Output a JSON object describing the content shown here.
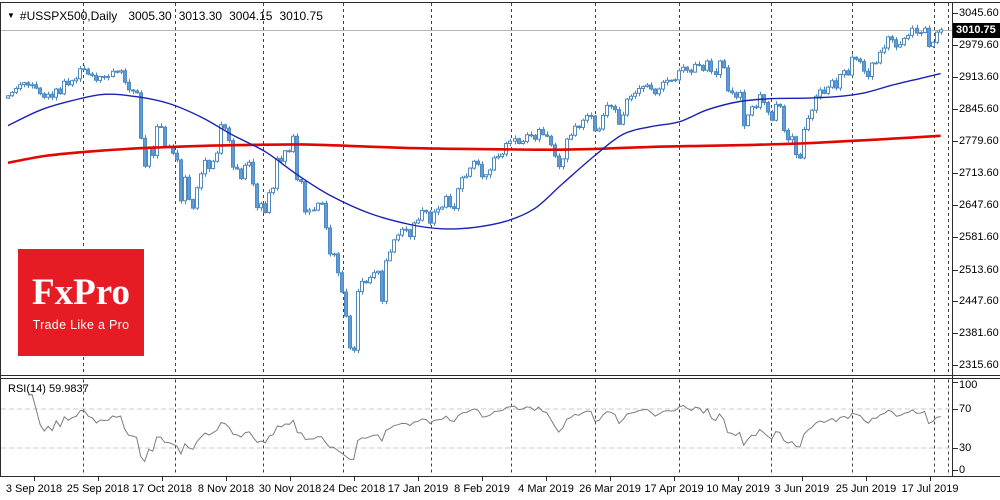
{
  "header": {
    "dropdown_icon": "▼",
    "symbol_period": "#USSPX500,Daily",
    "open": "3005.30",
    "high": "3013.30",
    "low": "3004.15",
    "close": "3010.75"
  },
  "watermark": {
    "brand": "FxPro",
    "tagline": "Trade Like a Pro",
    "bg_color": "#e61b23"
  },
  "rsi_panel": {
    "label": "RSI(14) 59.9837",
    "scale_labels": [
      100,
      70,
      30,
      0
    ],
    "line_color": "#7d7d7d"
  },
  "price_axis": {
    "labels": [
      "3045.60",
      "2979.60",
      "2913.60",
      "2845.60",
      "2779.60",
      "2713.60",
      "2647.60",
      "2581.60",
      "2513.60",
      "2447.60",
      "2381.60",
      "2315.60"
    ],
    "current_price": "3010.75",
    "tag_bg": "#000000"
  },
  "time_axis": {
    "labels": [
      "3 Sep 2018",
      "25 Sep 2018",
      "17 Oct 2018",
      "8 Nov 2018",
      "30 Nov 2018",
      "24 Dec 2018",
      "17 Jan 2019",
      "8 Feb 2019",
      "4 Mar 2019",
      "26 Mar 2019",
      "17 Apr 2019",
      "10 May 2019",
      "3 Jun 2019",
      "25 Jun 2019",
      "17 Jul 2019"
    ]
  },
  "chart_data": {
    "type": "candlestick",
    "symbol": "#USSPX500",
    "timeframe": "Daily",
    "ohlc_current": {
      "open": 3005.3,
      "high": 3013.3,
      "low": 3004.15,
      "close": 3010.75
    },
    "y_range": [
      2315.6,
      3045.6
    ],
    "x_range_dates": [
      "3 Sep 2018",
      "17 Jul 2019"
    ],
    "closes": [
      2874,
      2881,
      2889,
      2897,
      2901,
      2896,
      2897,
      2890,
      2878,
      2871,
      2877,
      2871,
      2888,
      2878,
      2904,
      2897,
      2905,
      2909,
      2930,
      2929,
      2919,
      2916,
      2906,
      2914,
      2913,
      2914,
      2925,
      2923,
      2926,
      2902,
      2886,
      2884,
      2880,
      2786,
      2728,
      2767,
      2750,
      2810,
      2809,
      2769,
      2768,
      2755,
      2741,
      2656,
      2705,
      2659,
      2641,
      2683,
      2712,
      2740,
      2723,
      2738,
      2755,
      2814,
      2807,
      2781,
      2726,
      2722,
      2702,
      2730,
      2736,
      2691,
      2642,
      2650,
      2632,
      2673,
      2682,
      2744,
      2738,
      2760,
      2758,
      2790,
      2700,
      2696,
      2633,
      2637,
      2637,
      2651,
      2651,
      2600,
      2546,
      2546,
      2507,
      2467,
      2417,
      2351,
      2346,
      2468,
      2489,
      2486,
      2497,
      2507,
      2510,
      2448,
      2532,
      2550,
      2575,
      2585,
      2597,
      2596,
      2582,
      2610,
      2616,
      2636,
      2633,
      2610,
      2633,
      2639,
      2643,
      2665,
      2644,
      2640,
      2681,
      2704,
      2707,
      2724,
      2738,
      2732,
      2706,
      2710,
      2720,
      2745,
      2748,
      2753,
      2775,
      2780,
      2785,
      2775,
      2779,
      2793,
      2792,
      2784,
      2804,
      2793,
      2790,
      2772,
      2749,
      2727,
      2743,
      2784,
      2792,
      2811,
      2808,
      2823,
      2833,
      2832,
      2801,
      2805,
      2833,
      2854,
      2852,
      2845,
      2815,
      2834,
      2867,
      2873,
      2879,
      2889,
      2893,
      2896,
      2888,
      2878,
      2888,
      2902,
      2906,
      2905,
      2907,
      2926,
      2933,
      2927,
      2923,
      2939,
      2937,
      2927,
      2946,
      2924,
      2918,
      2946,
      2932,
      2884,
      2880,
      2871,
      2881,
      2812,
      2834,
      2851,
      2850,
      2876,
      2860,
      2840,
      2823,
      2856,
      2852,
      2802,
      2783,
      2789,
      2752,
      2745,
      2804,
      2827,
      2844,
      2873,
      2886,
      2879,
      2892,
      2905,
      2890,
      2918,
      2926,
      2917,
      2954,
      2950,
      2945,
      2925,
      2914,
      2942,
      2942,
      2964,
      2973,
      2996,
      2990,
      2975,
      2980,
      2993,
      2999,
      3014,
      3004,
      3005,
      3014,
      2976,
      2985,
      3006,
      3010.75
    ],
    "ma_fast": {
      "name": "fast moving average",
      "color": "#1822b4",
      "points": [
        [
          0,
          2812
        ],
        [
          8,
          2844
        ],
        [
          16,
          2864
        ],
        [
          24,
          2877
        ],
        [
          32,
          2872
        ],
        [
          40,
          2858
        ],
        [
          48,
          2830
        ],
        [
          56,
          2792
        ],
        [
          64,
          2758
        ],
        [
          72,
          2710
        ],
        [
          80,
          2668
        ],
        [
          90,
          2630
        ],
        [
          100,
          2607
        ],
        [
          108,
          2598
        ],
        [
          116,
          2601
        ],
        [
          124,
          2614
        ],
        [
          131,
          2640
        ],
        [
          138,
          2692
        ],
        [
          146,
          2750
        ],
        [
          153,
          2794
        ],
        [
          160,
          2810
        ],
        [
          167,
          2820
        ],
        [
          174,
          2845
        ],
        [
          182,
          2862
        ],
        [
          190,
          2868
        ],
        [
          198,
          2869
        ],
        [
          206,
          2872
        ],
        [
          213,
          2880
        ],
        [
          220,
          2896
        ],
        [
          227,
          2910
        ],
        [
          232,
          2920
        ]
      ]
    },
    "ma_slow": {
      "name": "slow moving average",
      "color": "#e10600",
      "points": [
        [
          0,
          2735
        ],
        [
          10,
          2750
        ],
        [
          23,
          2760
        ],
        [
          35,
          2766
        ],
        [
          48,
          2770
        ],
        [
          60,
          2772
        ],
        [
          73,
          2773
        ],
        [
          85,
          2770
        ],
        [
          98,
          2766
        ],
        [
          110,
          2764
        ],
        [
          122,
          2763
        ],
        [
          135,
          2762
        ],
        [
          147,
          2764
        ],
        [
          160,
          2768
        ],
        [
          172,
          2770
        ],
        [
          185,
          2772
        ],
        [
          197,
          2775
        ],
        [
          209,
          2780
        ],
        [
          222,
          2786
        ],
        [
          232,
          2791
        ]
      ]
    },
    "rsi": {
      "period": 14,
      "current": 59.9837,
      "levels": [
        70,
        30
      ],
      "range": [
        0,
        100
      ]
    },
    "colors": {
      "candle_fill": "#5f9bd8",
      "candle_stroke": "#4e8ac2",
      "candle_up_fill": "#ffffff",
      "grid": "#404040",
      "level_dash": "#c9c9c9",
      "bid_line": "#b4b4b4",
      "border": "#2b2b2b"
    }
  }
}
